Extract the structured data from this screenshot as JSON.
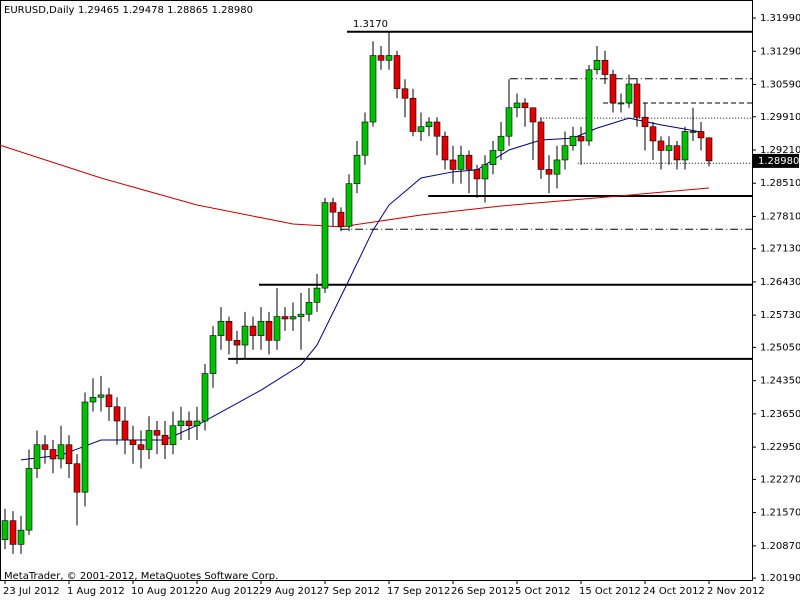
{
  "chart_data": {
    "type": "candlestick",
    "title": "EURUSD,Daily",
    "ohlc_text": "1.29465 1.29478 1.28865 1.28980",
    "footer": "MetaTrader, © 2001-2012, MetaQuotes Software Corp.",
    "up_color": "#00c000",
    "down_color": "#e00000",
    "xlim": [
      -0.625,
      93.375
    ],
    "ylim": [
      1.2015,
      1.3237
    ],
    "open": [
      1.21,
      1.214,
      1.209,
      1.212,
      1.225,
      1.23,
      1.229,
      1.227,
      1.23,
      1.226,
      1.22,
      1.239,
      1.24,
      1.2405,
      1.238,
      1.235,
      1.231,
      1.23,
      1.229,
      1.233,
      1.232,
      1.23,
      1.234,
      1.235,
      1.234,
      1.235,
      1.245,
      1.253,
      1.256,
      1.252,
      1.251,
      1.255,
      1.253,
      1.256,
      1.252,
      1.257,
      1.2565,
      1.257,
      1.2575,
      1.26,
      1.263,
      1.281,
      1.279,
      1.276,
      1.285,
      1.291,
      1.298,
      1.312,
      1.311,
      1.312,
      1.305,
      1.303,
      1.296,
      1.297,
      1.298,
      1.295,
      1.29,
      1.288,
      1.291,
      1.288,
      1.286,
      1.289,
      1.292,
      1.295,
      1.301,
      1.302,
      1.301,
      1.298,
      1.288,
      1.287,
      1.29,
      1.293,
      1.295,
      1.294,
      1.309,
      1.311,
      1.308,
      1.302,
      1.302,
      1.306,
      1.299,
      1.297,
      1.294,
      1.292,
      1.293,
      1.29,
      1.296,
      1.296,
      1.29465
    ],
    "high": [
      1.2165,
      1.216,
      1.215,
      1.229,
      1.233,
      1.232,
      1.231,
      1.234,
      1.232,
      1.228,
      1.241,
      1.244,
      1.2445,
      1.242,
      1.24,
      1.238,
      1.234,
      1.233,
      1.236,
      1.235,
      1.235,
      1.237,
      1.238,
      1.237,
      1.238,
      1.247,
      1.255,
      1.259,
      1.257,
      1.254,
      1.258,
      1.257,
      1.259,
      1.258,
      1.263,
      1.259,
      1.26,
      1.262,
      1.263,
      1.266,
      1.282,
      1.282,
      1.28,
      1.287,
      1.294,
      1.3,
      1.315,
      1.314,
      1.317,
      1.313,
      1.307,
      1.305,
      1.3,
      1.299,
      1.299,
      1.296,
      1.293,
      1.293,
      1.292,
      1.289,
      1.291,
      1.294,
      1.298,
      1.307,
      1.304,
      1.303,
      1.301,
      1.299,
      1.291,
      1.293,
      1.296,
      1.297,
      1.297,
      1.31,
      1.314,
      1.313,
      1.309,
      1.304,
      1.308,
      1.307,
      1.302,
      1.298,
      1.295,
      1.295,
      1.294,
      1.297,
      1.301,
      1.298,
      1.29478
    ],
    "low": [
      1.208,
      1.207,
      1.207,
      1.211,
      1.223,
      1.226,
      1.224,
      1.225,
      1.223,
      1.213,
      1.217,
      1.237,
      1.237,
      1.235,
      1.23,
      1.228,
      1.226,
      1.225,
      1.227,
      1.228,
      1.227,
      1.228,
      1.231,
      1.231,
      1.231,
      1.233,
      1.242,
      1.25,
      1.249,
      1.247,
      1.248,
      1.25,
      1.25,
      1.249,
      1.25,
      1.254,
      1.254,
      1.25,
      1.256,
      1.258,
      1.262,
      1.276,
      1.275,
      1.275,
      1.283,
      1.289,
      1.297,
      1.309,
      1.309,
      1.303,
      1.299,
      1.295,
      1.294,
      1.295,
      1.291,
      1.288,
      1.285,
      1.285,
      1.283,
      1.282,
      1.281,
      1.287,
      1.29,
      1.293,
      1.299,
      1.297,
      1.29,
      1.286,
      1.283,
      1.284,
      1.288,
      1.292,
      1.289,
      1.293,
      1.308,
      1.306,
      1.3,
      1.3,
      1.301,
      1.297,
      1.292,
      1.29,
      1.288,
      1.289,
      1.288,
      1.288,
      1.294,
      1.292,
      1.28865
    ],
    "close": [
      1.214,
      1.209,
      1.212,
      1.225,
      1.23,
      1.229,
      1.227,
      1.23,
      1.226,
      1.22,
      1.239,
      1.24,
      1.2405,
      1.238,
      1.235,
      1.231,
      1.23,
      1.229,
      1.233,
      1.232,
      1.23,
      1.234,
      1.235,
      1.234,
      1.235,
      1.245,
      1.253,
      1.256,
      1.252,
      1.251,
      1.255,
      1.253,
      1.256,
      1.252,
      1.257,
      1.2565,
      1.257,
      1.2575,
      1.26,
      1.263,
      1.281,
      1.279,
      1.276,
      1.285,
      1.291,
      1.298,
      1.312,
      1.311,
      1.312,
      1.305,
      1.303,
      1.296,
      1.297,
      1.298,
      1.295,
      1.29,
      1.288,
      1.291,
      1.288,
      1.286,
      1.289,
      1.292,
      1.295,
      1.301,
      1.302,
      1.301,
      1.298,
      1.288,
      1.287,
      1.29,
      1.293,
      1.295,
      1.294,
      1.309,
      1.311,
      1.308,
      1.302,
      1.302,
      1.306,
      1.299,
      1.297,
      1.294,
      1.292,
      1.293,
      1.29,
      1.296,
      1.296,
      1.29465,
      1.2898
    ],
    "series": [
      {
        "color": "#cc0000",
        "x": [
          -0.6,
          12,
          24,
          36,
          42,
          52,
          62,
          74,
          88
        ],
        "values": [
          1.2931,
          1.2862,
          1.2805,
          1.2765,
          1.2759,
          1.2784,
          1.2803,
          1.282,
          1.2841
        ]
      },
      {
        "color": "#000080",
        "x": [
          2,
          7,
          12,
          20,
          24,
          32,
          37,
          39,
          43,
          46,
          48,
          52,
          56,
          59,
          63,
          67,
          71,
          74,
          78,
          82,
          87
        ],
        "values": [
          1.2268,
          1.2278,
          1.231,
          1.231,
          1.2341,
          1.2415,
          1.2468,
          1.251,
          1.2647,
          1.2752,
          1.2805,
          1.2862,
          1.2875,
          1.2879,
          1.2921,
          1.2942,
          1.2946,
          1.2967,
          1.2988,
          1.2974,
          1.2959
        ]
      }
    ],
    "levels": [
      {
        "value": 1.317,
        "from": 42.75,
        "style": "solid",
        "label": "1.3170"
      },
      {
        "value": 1.2824,
        "from": 52.9,
        "style": "solid"
      },
      {
        "value": 1.2637,
        "from": 31.75,
        "style": "solid"
      },
      {
        "value": 1.2481,
        "from": 27.9,
        "style": "solid"
      },
      {
        "value": 1.3071,
        "from": 63.1,
        "style": "dashdot"
      },
      {
        "value": 1.302,
        "from": 74.75,
        "style": "dashed"
      },
      {
        "value": 1.2988,
        "from": 66.9,
        "style": "dotted"
      },
      {
        "value": 1.2754,
        "from": 41.9,
        "style": "dashdot"
      },
      {
        "value": 1.2893,
        "from": 71.6,
        "style": "dotted"
      }
    ],
    "last_price": {
      "value": 1.2898,
      "label": "1.28980"
    },
    "yticks": [
      {
        "value": 1.3199,
        "label": "1.31990"
      },
      {
        "value": 1.3129,
        "label": "1.31290"
      },
      {
        "value": 1.3059,
        "label": "1.30590"
      },
      {
        "value": 1.2991,
        "label": "1.29910"
      },
      {
        "value": 1.2921,
        "label": "1.29210"
      },
      {
        "value": 1.2851,
        "label": "1.28510"
      },
      {
        "value": 1.2781,
        "label": "1.27810"
      },
      {
        "value": 1.2713,
        "label": "1.27130"
      },
      {
        "value": 1.2643,
        "label": "1.26430"
      },
      {
        "value": 1.2573,
        "label": "1.25730"
      },
      {
        "value": 1.2505,
        "label": "1.25050"
      },
      {
        "value": 1.2435,
        "label": "1.24350"
      },
      {
        "value": 1.2365,
        "label": "1.23650"
      },
      {
        "value": 1.2295,
        "label": "1.22950"
      },
      {
        "value": 1.2227,
        "label": "1.22270"
      },
      {
        "value": 1.2157,
        "label": "1.21570"
      },
      {
        "value": 1.2087,
        "label": "1.20870"
      },
      {
        "value": 1.2019,
        "label": "1.20190"
      }
    ],
    "xticks": [
      {
        "value": 0,
        "label": "23 Jul 2012"
      },
      {
        "value": 8,
        "label": "1 Aug 2012"
      },
      {
        "value": 16,
        "label": "10 Aug 2012"
      },
      {
        "value": 24,
        "label": "20 Aug 2012"
      },
      {
        "value": 32,
        "label": "29 Aug 2012"
      },
      {
        "value": 40,
        "label": "7 Sep 2012"
      },
      {
        "value": 48,
        "label": "17 Sep 2012"
      },
      {
        "value": 56,
        "label": "26 Sep 2012"
      },
      {
        "value": 64,
        "label": "5 Oct 2012"
      },
      {
        "value": 72,
        "label": "15 Oct 2012"
      },
      {
        "value": 80,
        "label": "24 Oct 2012"
      },
      {
        "value": 88,
        "label": "2 Nov 2012"
      }
    ]
  }
}
